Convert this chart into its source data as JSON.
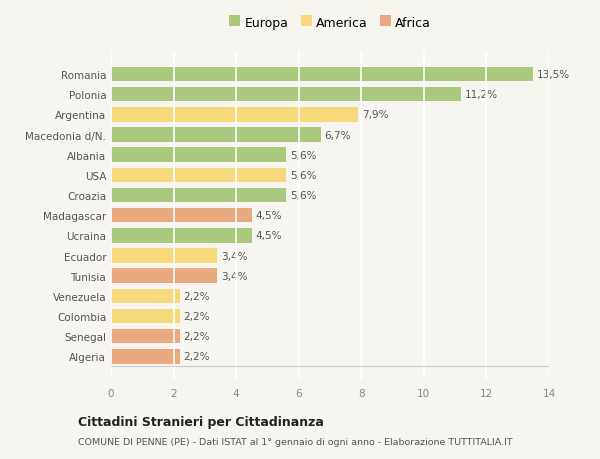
{
  "categories": [
    "Romania",
    "Polonia",
    "Argentina",
    "Macedonia d/N.",
    "Albania",
    "USA",
    "Croazia",
    "Madagascar",
    "Ucraina",
    "Ecuador",
    "Tunisia",
    "Venezuela",
    "Colombia",
    "Senegal",
    "Algeria"
  ],
  "values": [
    13.5,
    11.2,
    7.9,
    6.7,
    5.6,
    5.6,
    5.6,
    4.5,
    4.5,
    3.4,
    3.4,
    2.2,
    2.2,
    2.2,
    2.2
  ],
  "labels": [
    "13,5%",
    "11,2%",
    "7,9%",
    "6,7%",
    "5,6%",
    "5,6%",
    "5,6%",
    "4,5%",
    "4,5%",
    "3,4%",
    "3,4%",
    "2,2%",
    "2,2%",
    "2,2%",
    "2,2%"
  ],
  "continents": [
    "Europa",
    "Europa",
    "America",
    "Europa",
    "Europa",
    "America",
    "Europa",
    "Africa",
    "Europa",
    "America",
    "Africa",
    "America",
    "America",
    "Africa",
    "Africa"
  ],
  "colors": {
    "Europa": "#aac87e",
    "America": "#f7d97c",
    "Africa": "#e8aa7e"
  },
  "xlim": [
    0,
    14
  ],
  "xticks": [
    0,
    2,
    4,
    6,
    8,
    10,
    12,
    14
  ],
  "title1": "Cittadini Stranieri per Cittadinanza",
  "title2": "COMUNE DI PENNE (PE) - Dati ISTAT al 1° gennaio di ogni anno - Elaborazione TUTTITALIA.IT",
  "background_color": "#f7f5ef",
  "grid_color": "#ffffff",
  "bar_height": 0.72
}
